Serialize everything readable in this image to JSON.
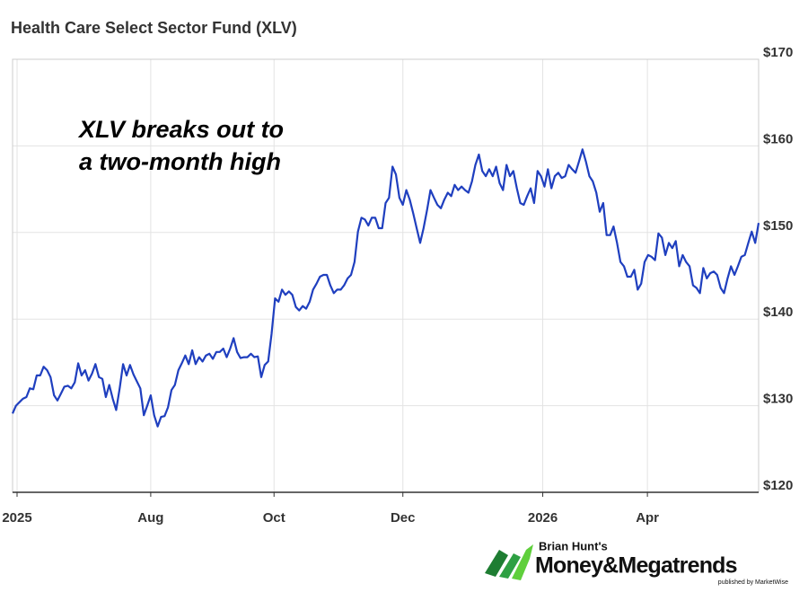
{
  "chart_data": {
    "type": "line",
    "title": "Health Care Select Sector Fund (XLV)",
    "annotation": [
      "XLV breaks out to",
      "a two-month high"
    ],
    "xlim": [
      0,
      216
    ],
    "xticks": [
      {
        "value": 1.3,
        "label": "2025"
      },
      {
        "value": 40,
        "label": "Aug"
      },
      {
        "value": 75.7,
        "label": "Oct"
      },
      {
        "value": 113,
        "label": "Dec"
      },
      {
        "value": 153.5,
        "label": "2026"
      },
      {
        "value": 183.8,
        "label": "Apr"
      }
    ],
    "ylim": [
      120,
      170
    ],
    "yticks": [
      {
        "value": 120,
        "label": "$120"
      },
      {
        "value": 130,
        "label": "$130"
      },
      {
        "value": 140,
        "label": "$140"
      },
      {
        "value": 150,
        "label": "$150"
      },
      {
        "value": 160,
        "label": "$160"
      },
      {
        "value": 170,
        "label": "$170"
      }
    ],
    "grid": true,
    "series": [
      {
        "color": "#1f3fbf",
        "values": [
          129.1,
          130.0,
          130.4,
          130.8,
          131.0,
          132.0,
          131.9,
          133.5,
          133.5,
          134.5,
          134.1,
          133.3,
          131.2,
          130.6,
          131.4,
          132.2,
          132.3,
          132.0,
          132.7,
          134.9,
          133.5,
          134.1,
          132.9,
          133.7,
          134.8,
          133.3,
          133.1,
          131.0,
          132.4,
          130.8,
          129.5,
          132.0,
          134.8,
          133.5,
          134.7,
          133.6,
          132.8,
          132.0,
          128.9,
          130.0,
          131.2,
          128.9,
          127.6,
          128.7,
          128.8,
          129.8,
          131.8,
          132.4,
          134.1,
          134.9,
          135.8,
          134.8,
          136.4,
          134.8,
          135.6,
          135.1,
          135.8,
          136.0,
          135.4,
          136.2,
          136.2,
          136.6,
          135.6,
          136.6,
          137.8,
          136.2,
          135.5,
          135.6,
          135.6,
          136.0,
          135.6,
          135.7,
          133.3,
          134.7,
          135.1,
          138.3,
          142.4,
          142.0,
          143.4,
          142.8,
          143.2,
          142.8,
          141.4,
          141.0,
          141.5,
          141.2,
          142.0,
          143.4,
          144.1,
          144.9,
          145.1,
          145.1,
          143.9,
          143.0,
          143.4,
          143.4,
          143.9,
          144.7,
          145.1,
          146.6,
          150.1,
          151.7,
          151.5,
          150.8,
          151.7,
          151.7,
          150.5,
          150.5,
          153.4,
          154.0,
          157.6,
          156.7,
          154.0,
          153.2,
          154.9,
          153.8,
          152.2,
          150.5,
          148.8,
          150.5,
          152.6,
          154.9,
          154.0,
          153.2,
          152.8,
          153.8,
          154.6,
          154.2,
          155.5,
          154.9,
          155.3,
          154.9,
          154.6,
          155.9,
          157.8,
          159.0,
          157.1,
          156.5,
          157.3,
          156.5,
          157.6,
          155.7,
          154.9,
          157.8,
          156.5,
          157.1,
          155.1,
          153.4,
          153.2,
          154.2,
          155.1,
          153.4,
          157.1,
          156.5,
          155.3,
          157.3,
          155.1,
          156.5,
          156.9,
          156.3,
          156.5,
          157.8,
          157.3,
          156.9,
          158.2,
          159.6,
          158.2,
          156.5,
          155.9,
          154.6,
          152.4,
          153.4,
          149.7,
          149.7,
          150.7,
          148.8,
          146.6,
          146.1,
          144.9,
          144.9,
          145.7,
          143.4,
          144.1,
          146.6,
          147.4,
          147.2,
          146.8,
          149.9,
          149.4,
          147.4,
          148.8,
          148.2,
          149.0,
          146.1,
          147.4,
          146.6,
          146.1,
          143.9,
          143.6,
          143.0,
          145.9,
          144.7,
          145.3,
          145.5,
          145.1,
          143.6,
          143.0,
          144.7,
          146.1,
          145.1,
          146.1,
          147.2,
          147.4,
          148.8,
          150.1,
          148.8,
          151.1
        ]
      }
    ]
  },
  "branding": {
    "byline": "Brian Hunt's",
    "name": "Money&Megatrends",
    "publisher": "published by MarketWise"
  }
}
